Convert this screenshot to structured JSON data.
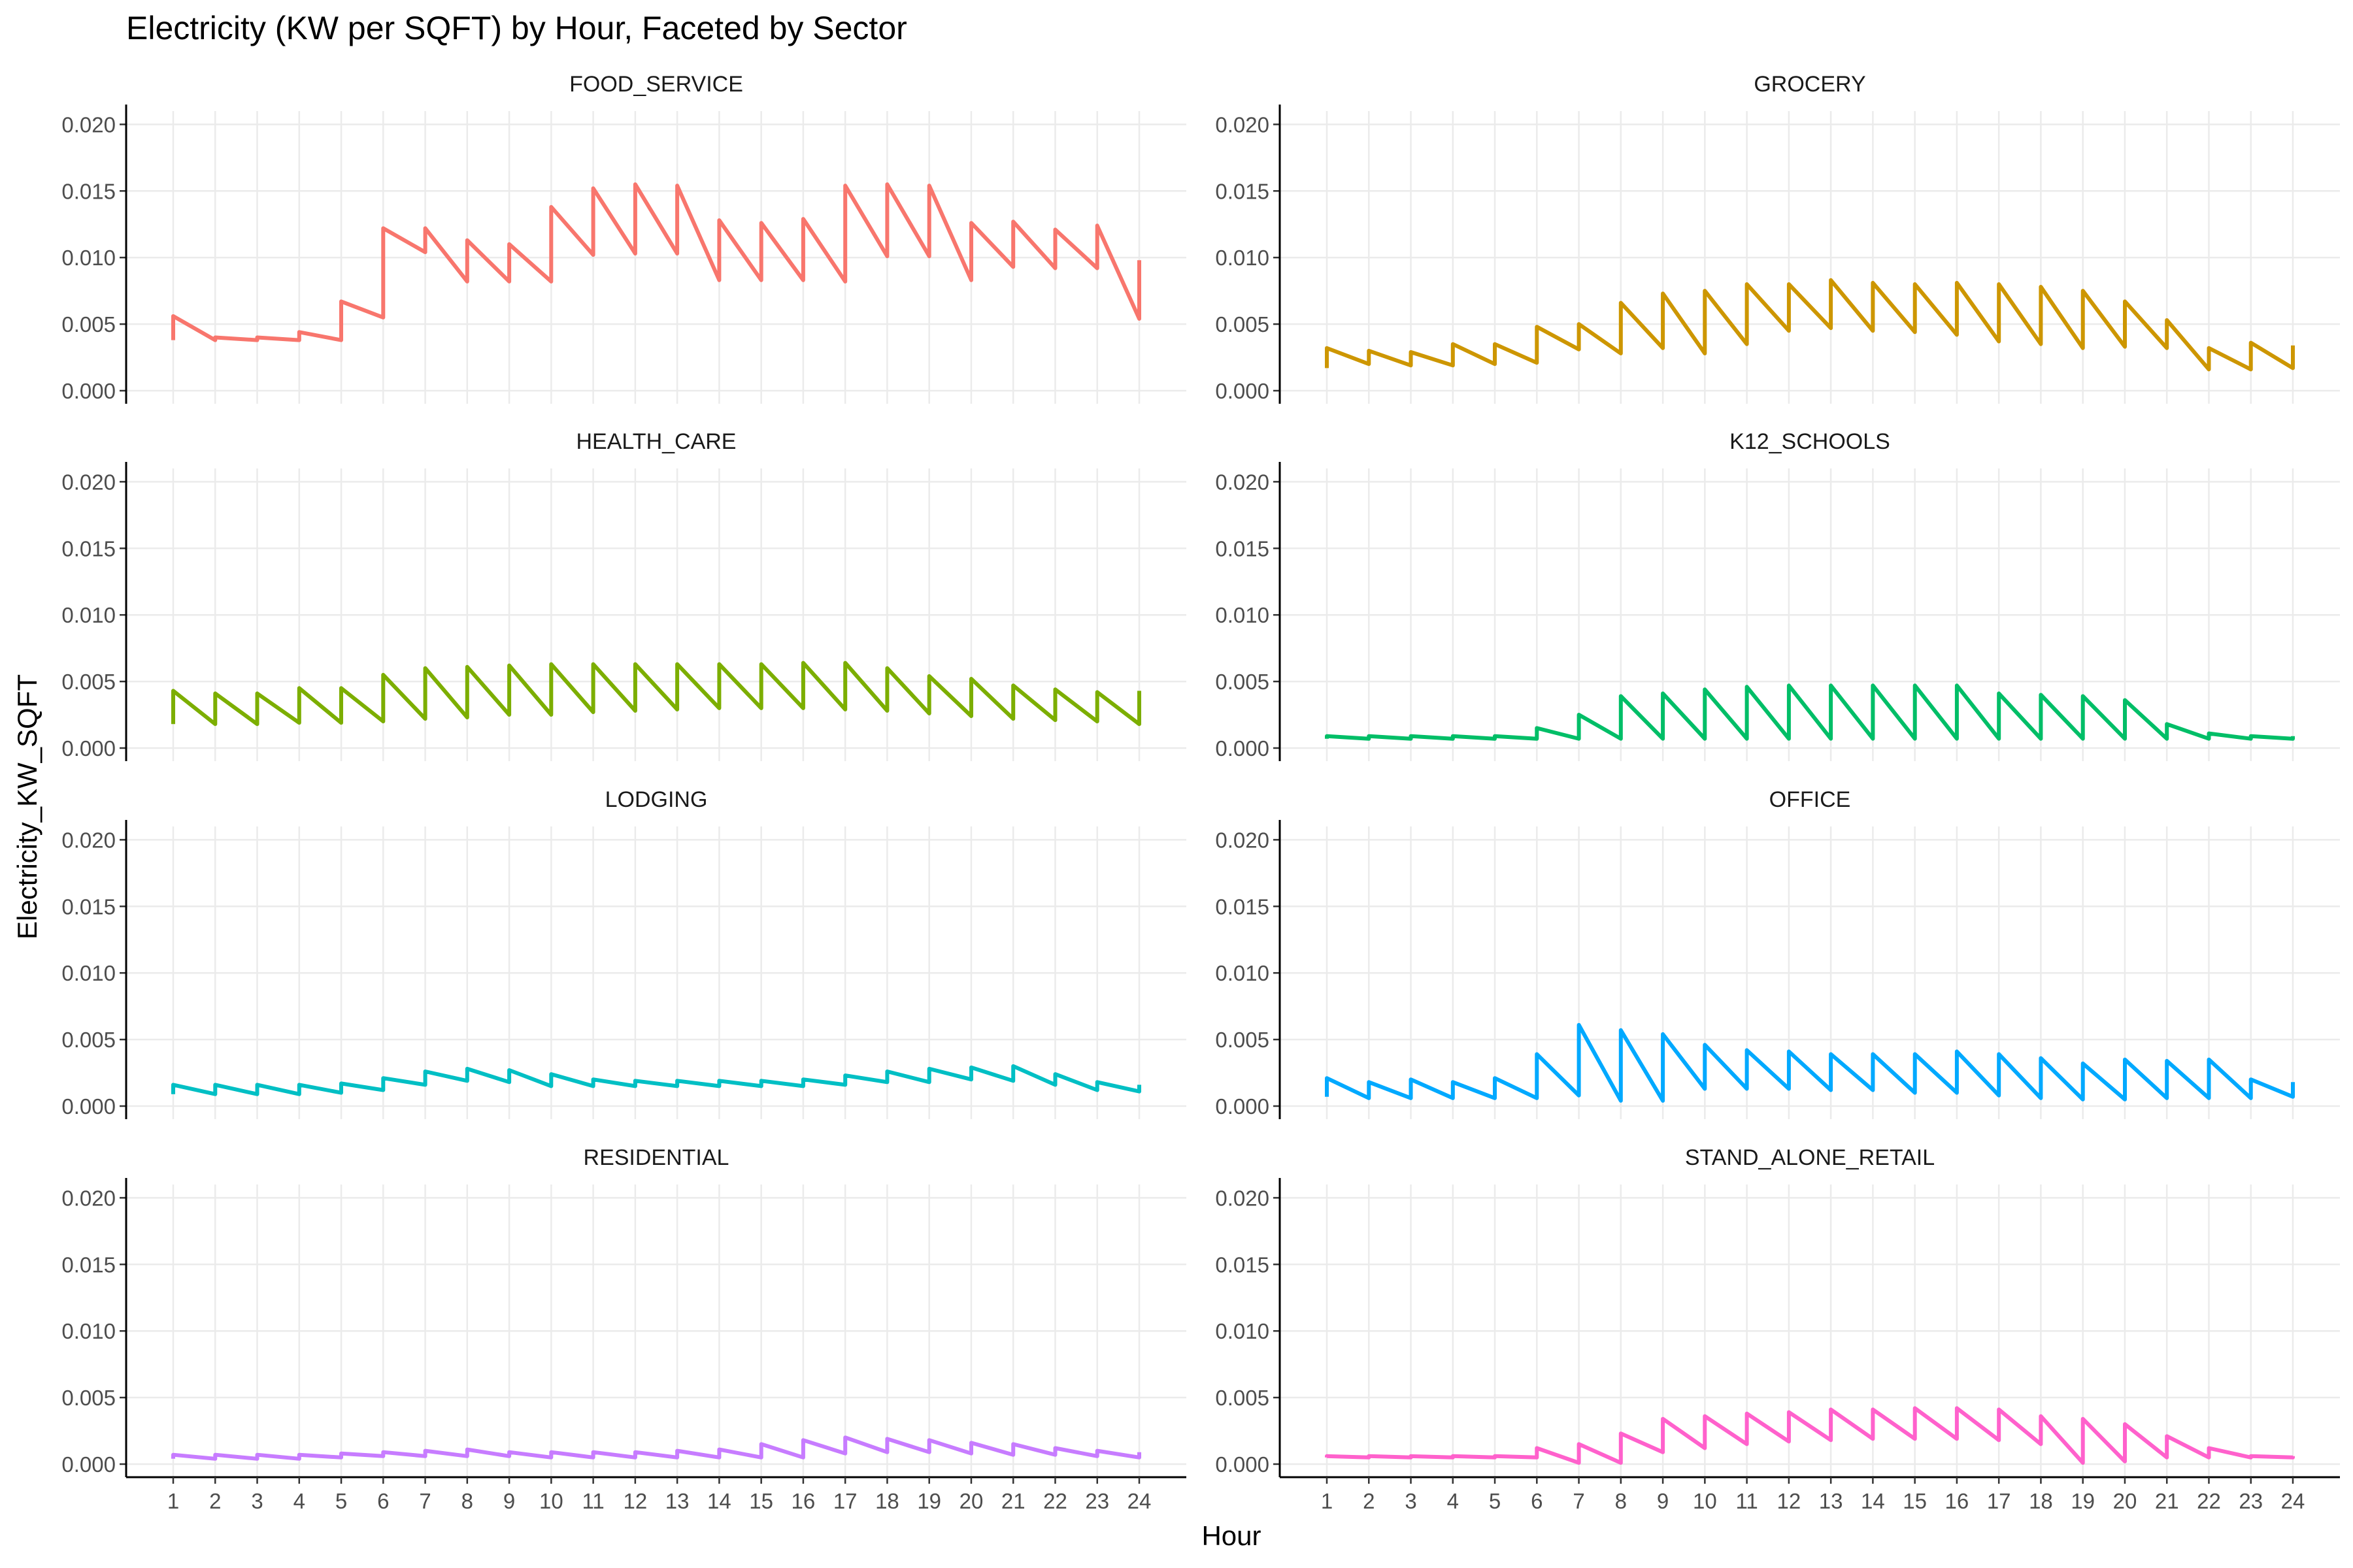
{
  "chart_data": {
    "type": "line",
    "title": "Electricity (KW per SQFT) by Hour, Faceted by Sector",
    "xlabel": "Hour",
    "ylabel": "Electricity_KW_SQFT",
    "x": [
      1,
      2,
      3,
      4,
      5,
      6,
      7,
      8,
      9,
      10,
      11,
      12,
      13,
      14,
      15,
      16,
      17,
      18,
      19,
      20,
      21,
      22,
      23,
      24
    ],
    "x_tick_labels": [
      "1",
      "2",
      "3",
      "4",
      "5",
      "6",
      "7",
      "8",
      "9",
      "10",
      "11",
      "12",
      "13",
      "14",
      "15",
      "16",
      "17",
      "18",
      "19",
      "20",
      "21",
      "22",
      "23",
      "24"
    ],
    "ylim": [
      0,
      0.021
    ],
    "y_ticks": [
      0,
      0.005,
      0.01,
      0.015,
      0.02
    ],
    "y_tick_labels": [
      "0.000",
      "0.005",
      "0.010",
      "0.015",
      "0.020"
    ],
    "grid": true,
    "legend": "none",
    "series": [
      {
        "name": "FOOD_SERVICE",
        "color": "#F8766D",
        "low": [
          0.0038,
          0.0038,
          0.0038,
          0.0038,
          0.0038,
          0.0055,
          0.0104,
          0.0082,
          0.0082,
          0.0082,
          0.0102,
          0.0103,
          0.0103,
          0.0083,
          0.0083,
          0.0083,
          0.0082,
          0.0101,
          0.0101,
          0.0083,
          0.0093,
          0.0092,
          0.0092,
          0.0054
        ],
        "high": [
          0.0056,
          0.004,
          0.004,
          0.0044,
          0.0067,
          0.0122,
          0.0122,
          0.0113,
          0.011,
          0.0138,
          0.0152,
          0.0155,
          0.0154,
          0.0128,
          0.0126,
          0.0129,
          0.0154,
          0.0155,
          0.0154,
          0.0126,
          0.0127,
          0.0121,
          0.0124,
          0.0098
        ]
      },
      {
        "name": "GROCERY",
        "color": "#CD9600",
        "low": [
          0.0017,
          0.002,
          0.0019,
          0.0019,
          0.002,
          0.0021,
          0.0031,
          0.0028,
          0.0032,
          0.0028,
          0.0035,
          0.0045,
          0.0047,
          0.0045,
          0.0044,
          0.0042,
          0.0037,
          0.0035,
          0.0032,
          0.0033,
          0.0032,
          0.0016,
          0.0016,
          0.0017
        ],
        "high": [
          0.0032,
          0.003,
          0.0029,
          0.0035,
          0.0035,
          0.0048,
          0.005,
          0.0066,
          0.0073,
          0.0075,
          0.008,
          0.008,
          0.0083,
          0.0081,
          0.008,
          0.0081,
          0.008,
          0.0078,
          0.0075,
          0.0067,
          0.0053,
          0.0032,
          0.0036,
          0.0034
        ]
      },
      {
        "name": "HEALTH_CARE",
        "color": "#7CAE00",
        "low": [
          0.0018,
          0.0018,
          0.0018,
          0.0019,
          0.0019,
          0.002,
          0.0022,
          0.0023,
          0.0025,
          0.0025,
          0.0027,
          0.0028,
          0.0029,
          0.003,
          0.003,
          0.003,
          0.0029,
          0.0028,
          0.0026,
          0.0024,
          0.0022,
          0.0021,
          0.002,
          0.0018
        ],
        "high": [
          0.0043,
          0.0041,
          0.0041,
          0.0045,
          0.0045,
          0.0055,
          0.006,
          0.0061,
          0.0062,
          0.0063,
          0.0063,
          0.0063,
          0.0063,
          0.0063,
          0.0063,
          0.0064,
          0.0064,
          0.006,
          0.0054,
          0.0052,
          0.0047,
          0.0044,
          0.0042,
          0.0043
        ]
      },
      {
        "name": "K12_SCHOOLS",
        "color": "#00BE67",
        "low": [
          0.0007,
          0.0007,
          0.0007,
          0.0007,
          0.0007,
          0.0007,
          0.0007,
          0.0007,
          0.0007,
          0.0007,
          0.0007,
          0.0007,
          0.0007,
          0.0007,
          0.0007,
          0.0007,
          0.0007,
          0.0007,
          0.0007,
          0.0007,
          0.0007,
          0.0007,
          0.0007,
          0.0007
        ],
        "high": [
          0.0009,
          0.0009,
          0.0009,
          0.0009,
          0.0009,
          0.0015,
          0.0025,
          0.0039,
          0.0041,
          0.0044,
          0.0046,
          0.0047,
          0.0047,
          0.0047,
          0.0047,
          0.0047,
          0.0041,
          0.004,
          0.0039,
          0.0036,
          0.0018,
          0.0011,
          0.0009,
          0.0009
        ]
      },
      {
        "name": "LODGING",
        "color": "#00BFC4",
        "low": [
          0.0009,
          0.0009,
          0.0009,
          0.0009,
          0.001,
          0.0012,
          0.0016,
          0.0019,
          0.0018,
          0.0015,
          0.0015,
          0.0015,
          0.0015,
          0.0015,
          0.0015,
          0.0015,
          0.0016,
          0.0018,
          0.0018,
          0.002,
          0.0019,
          0.0016,
          0.0012,
          0.0011
        ],
        "high": [
          0.0016,
          0.0016,
          0.0016,
          0.0016,
          0.0017,
          0.0021,
          0.0026,
          0.0028,
          0.0027,
          0.0024,
          0.002,
          0.0019,
          0.0019,
          0.0019,
          0.0019,
          0.002,
          0.0023,
          0.0026,
          0.0028,
          0.0029,
          0.003,
          0.0024,
          0.0018,
          0.0016
        ]
      },
      {
        "name": "OFFICE",
        "color": "#00A9FF",
        "low": [
          0.0007,
          0.0006,
          0.0006,
          0.0006,
          0.0006,
          0.0006,
          0.0008,
          0.0004,
          0.0004,
          0.0013,
          0.0013,
          0.0013,
          0.0012,
          0.0012,
          0.001,
          0.001,
          0.0008,
          0.0006,
          0.0005,
          0.0005,
          0.0006,
          0.0006,
          0.0006,
          0.0007
        ],
        "high": [
          0.0021,
          0.0018,
          0.002,
          0.0018,
          0.0021,
          0.0039,
          0.0061,
          0.0057,
          0.0054,
          0.0046,
          0.0042,
          0.0041,
          0.0039,
          0.0039,
          0.0039,
          0.0041,
          0.0039,
          0.0036,
          0.0032,
          0.0035,
          0.0034,
          0.0035,
          0.002,
          0.0018
        ]
      },
      {
        "name": "RESIDENTIAL",
        "color": "#C77CFF",
        "low": [
          0.0004,
          0.0004,
          0.0004,
          0.0004,
          0.0005,
          0.0006,
          0.0006,
          0.0006,
          0.0006,
          0.0005,
          0.0005,
          0.0005,
          0.0005,
          0.0005,
          0.0005,
          0.0005,
          0.0008,
          0.0009,
          0.0009,
          0.0008,
          0.0007,
          0.0007,
          0.0006,
          0.0005
        ],
        "high": [
          0.0007,
          0.0007,
          0.0007,
          0.0007,
          0.0008,
          0.0009,
          0.001,
          0.0011,
          0.0009,
          0.0009,
          0.0009,
          0.0009,
          0.001,
          0.0011,
          0.0015,
          0.0018,
          0.002,
          0.0019,
          0.0018,
          0.0016,
          0.0015,
          0.0012,
          0.001,
          0.0009
        ]
      },
      {
        "name": "STAND_ALONE_RETAIL",
        "color": "#FF61CC",
        "low": [
          0.0005,
          0.0005,
          0.0005,
          0.0005,
          0.0005,
          0.0005,
          0.0001,
          0.0001,
          0.0009,
          0.0012,
          0.0015,
          0.0017,
          0.0018,
          0.0019,
          0.0019,
          0.0019,
          0.0018,
          0.0015,
          0.0001,
          0.0002,
          0.0005,
          0.0005,
          0.0005,
          0.0005
        ],
        "high": [
          0.0006,
          0.0006,
          0.0006,
          0.0006,
          0.0006,
          0.0012,
          0.0015,
          0.0023,
          0.0034,
          0.0036,
          0.0038,
          0.0039,
          0.0041,
          0.0041,
          0.0042,
          0.0042,
          0.0041,
          0.0036,
          0.0034,
          0.003,
          0.0021,
          0.0012,
          0.0006,
          0.0006
        ]
      }
    ]
  }
}
